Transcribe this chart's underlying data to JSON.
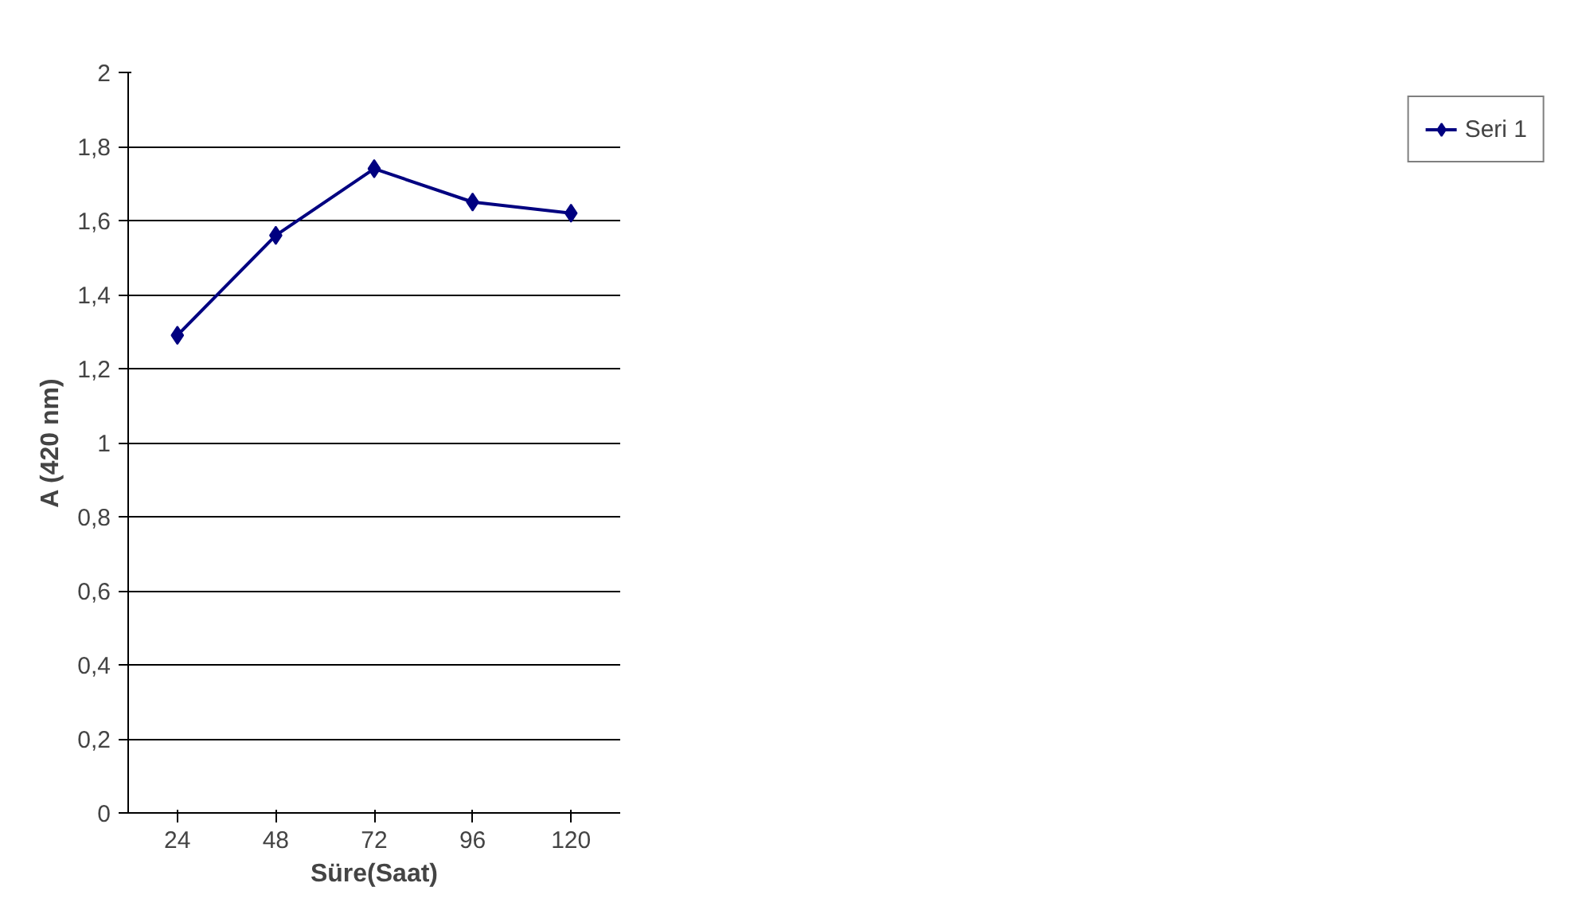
{
  "chart_data": {
    "type": "line",
    "xlabel": "Süre(Saat)",
    "ylabel": "A (420 nm)",
    "categories": [
      "24",
      "48",
      "72",
      "96",
      "120"
    ],
    "series": [
      {
        "name": "Seri 1",
        "color": "#000080",
        "values": [
          1.29,
          1.56,
          1.74,
          1.65,
          1.62
        ]
      }
    ],
    "ylim": [
      0,
      2
    ],
    "yticks": [
      0,
      {
        "value": 0.2,
        "label": "0,2"
      },
      {
        "value": 0.4,
        "label": "0,4"
      },
      {
        "value": 0.6,
        "label": "0,6"
      },
      {
        "value": 0.8,
        "label": "0,8"
      },
      1,
      {
        "value": 1.2,
        "label": "1,2"
      },
      {
        "value": 1.4,
        "label": "1,4"
      },
      {
        "value": 1.6,
        "label": "1,6"
      },
      {
        "value": 1.8,
        "label": "1,8"
      },
      2
    ],
    "grid": "y",
    "legend": "right",
    "marker": "diamond",
    "line_style": "solid"
  }
}
